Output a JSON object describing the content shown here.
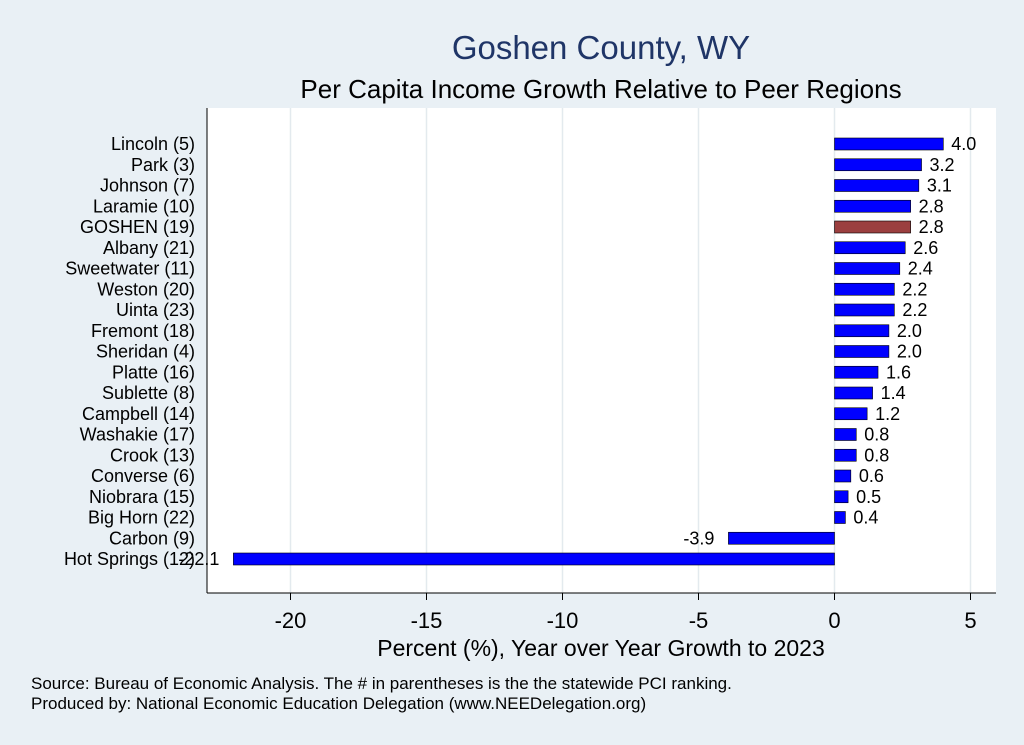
{
  "chart_data": {
    "type": "bar",
    "orientation": "horizontal",
    "title": "Goshen County, WY",
    "subtitle": "Per Capita Income Growth Relative to Peer Regions",
    "xlabel": "Percent (%), Year over Year Growth to 2023",
    "ylabel": "",
    "xlim": [
      -23,
      6
    ],
    "xticks": [
      -20,
      -15,
      -10,
      -5,
      0,
      5
    ],
    "xtick_labels": [
      "-20",
      "-15",
      "-10",
      "-5",
      "0",
      "5"
    ],
    "grid": true,
    "categories": [
      "Lincoln  (5)",
      "Park  (3)",
      "Johnson  (7)",
      "Laramie (10)",
      "GOSHEN (19)",
      "Albany (21)",
      "Sweetwater (11)",
      "Weston (20)",
      "Uinta (23)",
      "Fremont (18)",
      "Sheridan  (4)",
      "Platte (16)",
      "Sublette  (8)",
      "Campbell (14)",
      "Washakie (17)",
      "Crook (13)",
      "Converse  (6)",
      "Niobrara (15)",
      "Big Horn (22)",
      "Carbon  (9)",
      "Hot Springs (12)"
    ],
    "values": [
      4.0,
      3.2,
      3.1,
      2.8,
      2.8,
      2.6,
      2.4,
      2.2,
      2.2,
      2.0,
      2.0,
      1.6,
      1.4,
      1.2,
      0.8,
      0.8,
      0.6,
      0.5,
      0.4,
      -3.9,
      -22.1
    ],
    "value_labels": [
      "4.0",
      "3.2",
      "3.1",
      "2.8",
      "2.8",
      "2.6",
      "2.4",
      "2.2",
      "2.2",
      "2.0",
      "2.0",
      "1.6",
      "1.4",
      "1.2",
      "0.8",
      "0.8",
      "0.6",
      "0.5",
      "0.4",
      "-3.9",
      "-22.1"
    ],
    "highlight_category": "GOSHEN (19)",
    "bar_color": "#0000ff",
    "highlight_color": "#9b3f3f",
    "title_color": "#1f3567"
  },
  "notes": {
    "source": "Source: Bureau of Economic Analysis. The # in parentheses is the the statewide PCI ranking.",
    "produced_by": "Produced by: National Economic Education Delegation (www.NEEDelegation.org)"
  }
}
